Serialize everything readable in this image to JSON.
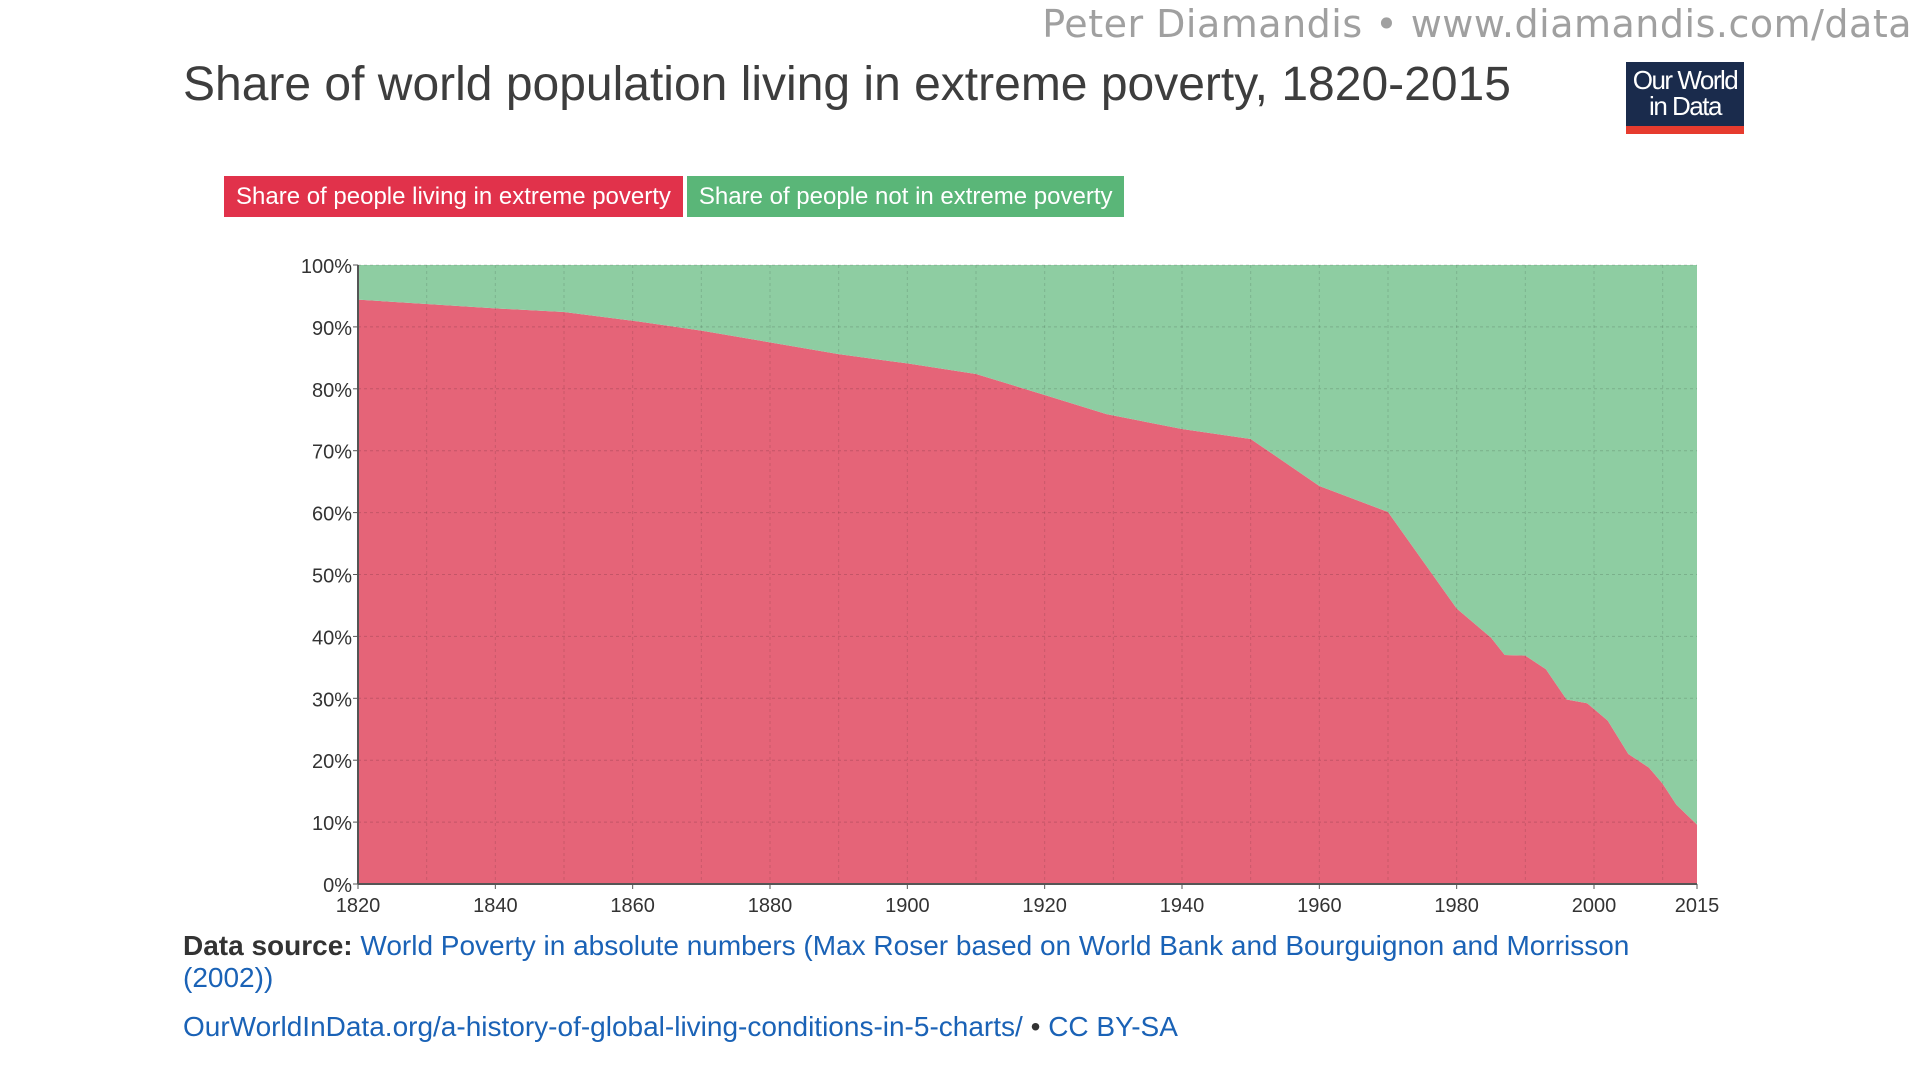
{
  "credit": "Peter Diamandis • www.diamandis.com/data",
  "logo": {
    "line1": "Our World",
    "line2": "in Data"
  },
  "source": {
    "label": "Data source:",
    "text": "World Poverty in absolute numbers (Max Roser based on World Bank and Bourguignon and Morrisson (2002))"
  },
  "footer": {
    "link": "OurWorldInData.org/a-history-of-global-living-conditions-in-5-charts/",
    "sep": "•",
    "license": "CC BY-SA"
  },
  "chart_data": {
    "type": "area",
    "stacked": true,
    "title": "Share of world population living in extreme poverty, 1820-2015",
    "x": [
      1820,
      1830,
      1840,
      1850,
      1860,
      1870,
      1880,
      1890,
      1900,
      1910,
      1920,
      1929,
      1940,
      1950,
      1960,
      1970,
      1980,
      1985,
      1987,
      1990,
      1993,
      1996,
      1999,
      2002,
      2005,
      2008,
      2010,
      2012,
      2015
    ],
    "series": [
      {
        "name": "Share of people living in extreme poverty",
        "color": "#e56478",
        "legend_color": "#e1324b",
        "values": [
          94.4,
          93.7,
          93.0,
          92.4,
          91.0,
          89.4,
          87.5,
          85.6,
          84.1,
          82.4,
          79.0,
          75.9,
          73.5,
          71.9,
          64.3,
          60.1,
          44.5,
          39.8,
          37.0,
          36.9,
          34.7,
          29.8,
          29.2,
          26.4,
          21.0,
          18.8,
          16.2,
          12.8,
          9.6
        ]
      },
      {
        "name": "Share of people not in extreme poverty",
        "color": "#8ecda2",
        "legend_color": "#5ab678",
        "values": [
          5.6,
          6.3,
          7.0,
          7.6,
          9.0,
          10.6,
          12.5,
          14.4,
          15.9,
          17.6,
          21.0,
          24.1,
          26.5,
          28.1,
          35.7,
          39.9,
          55.5,
          60.2,
          63.0,
          63.1,
          65.3,
          70.2,
          70.8,
          73.6,
          79.0,
          81.2,
          83.8,
          87.2,
          90.4
        ]
      }
    ],
    "ylim": [
      0,
      100
    ],
    "xlim": [
      1820,
      2015
    ],
    "x_ticks": [
      1820,
      1840,
      1860,
      1880,
      1900,
      1920,
      1940,
      1960,
      1980,
      2000,
      2015
    ],
    "y_ticks": [
      "0%",
      "10%",
      "20%",
      "30%",
      "40%",
      "50%",
      "60%",
      "70%",
      "80%",
      "90%",
      "100%"
    ],
    "grid": true,
    "legend_position": "top-left"
  }
}
